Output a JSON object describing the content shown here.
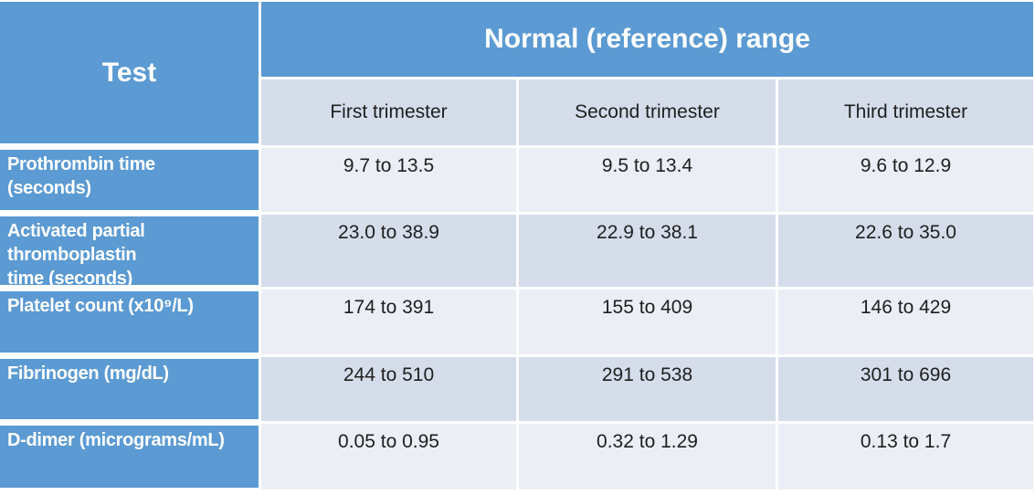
{
  "colors": {
    "header_blue": "#5B9AD2",
    "band_dark": "#D5DDEB",
    "band_light": "#EBEEF5",
    "header_text": "#FFFFFF",
    "body_text": "#1E1E1E",
    "background": "#FFFFFF"
  },
  "table": {
    "corner_header": "Test",
    "group_header": "Normal (reference) range",
    "column_headers": [
      "First trimester",
      "Second trimester",
      "Third trimester"
    ],
    "rows": [
      {
        "test": "Prothrombin time\n(seconds)",
        "values": [
          "9.7 to 13.5",
          "9.5 to 13.4",
          "9.6 to 12.9"
        ]
      },
      {
        "test": "Activated partial\nthromboplastin\ntime (seconds)",
        "values": [
          "23.0 to 38.9",
          "22.9 to 38.1",
          "22.6 to 35.0"
        ]
      },
      {
        "test": "Platelet count (x10⁹/L)",
        "values": [
          "174 to 391",
          "155 to 409",
          "146 to 429"
        ]
      },
      {
        "test": "Fibrinogen (mg/dL)",
        "values": [
          "244 to 510",
          "291 to 538",
          "301 to 696"
        ]
      },
      {
        "test": "D-dimer (micrograms/mL)",
        "values": [
          "0.05 to 0.95",
          "0.32 to 1.29",
          "0.13 to 1.7"
        ]
      }
    ]
  }
}
